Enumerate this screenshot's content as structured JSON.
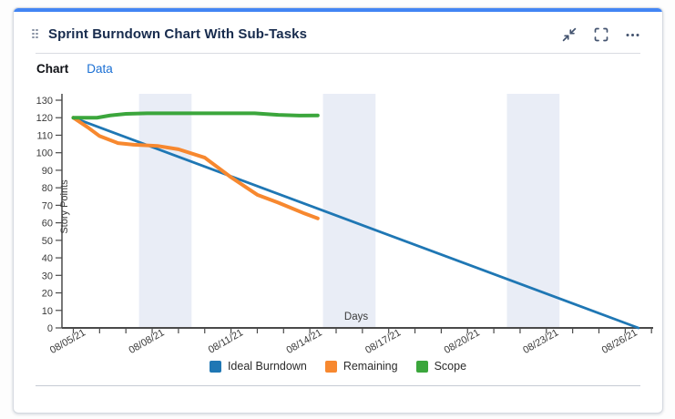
{
  "card": {
    "title": "Sprint Burndown Chart With Sub-Tasks",
    "accent_color": "#4285f4",
    "drag_handle_icon": "drag-handle-icon",
    "actions": [
      {
        "label": "Collapse",
        "icon": "collapse-icon"
      },
      {
        "label": "Fullscreen",
        "icon": "fullscreen-icon"
      },
      {
        "label": "More options",
        "icon": "ellipsis-icon"
      }
    ]
  },
  "tabs": [
    {
      "label": "Chart",
      "active": true
    },
    {
      "label": "Data",
      "active": false
    }
  ],
  "chart_data": {
    "type": "line",
    "title": "",
    "xlabel": "Days",
    "ylabel": "Story Points",
    "ylim": [
      0,
      130
    ],
    "xlim_days": [
      0,
      22
    ],
    "y_ticks": [
      0,
      10,
      20,
      30,
      40,
      50,
      60,
      70,
      80,
      90,
      100,
      110,
      120,
      130
    ],
    "x_tick_label_interval_days": 3,
    "x_tick_labels": [
      "08/05/21",
      "08/08/21",
      "08/11/21",
      "08/14/21",
      "08/17/21",
      "08/20/21",
      "08/23/21",
      "08/26/21"
    ],
    "grid": false,
    "legend_position": "bottom",
    "band_color": "#e9edf6",
    "non_working_day_bands_days": [
      [
        2.5,
        4.5
      ],
      [
        9.5,
        11.5
      ],
      [
        16.5,
        18.5
      ]
    ],
    "axis_color": "#4a4a4a",
    "tick_label_color": "#3a3a3a",
    "series": [
      {
        "name": "Ideal Burndown",
        "color": "#1f77b4",
        "line_width": 2.8,
        "points": [
          [
            0,
            120
          ],
          [
            21.5,
            0
          ]
        ]
      },
      {
        "name": "Remaining",
        "color": "#f7882f",
        "line_width": 4,
        "points": [
          [
            0,
            120
          ],
          [
            0.55,
            114.5
          ],
          [
            1,
            109.5
          ],
          [
            1.7,
            105.5
          ],
          [
            2.3,
            104.6
          ],
          [
            3.2,
            103.9
          ],
          [
            4,
            102
          ],
          [
            5,
            97.2
          ],
          [
            6,
            86
          ],
          [
            7,
            76
          ],
          [
            7.8,
            71.5
          ],
          [
            8.8,
            65.3
          ],
          [
            9.3,
            62.5
          ]
        ]
      },
      {
        "name": "Scope",
        "color": "#3ba63c",
        "line_width": 4,
        "points": [
          [
            0,
            120
          ],
          [
            0.9,
            120
          ],
          [
            1.4,
            121.3
          ],
          [
            2,
            122.2
          ],
          [
            2.8,
            122.5
          ],
          [
            6.9,
            122.5
          ],
          [
            7.8,
            121.6
          ],
          [
            8.6,
            121.2
          ],
          [
            9.3,
            121.3
          ]
        ]
      }
    ]
  }
}
